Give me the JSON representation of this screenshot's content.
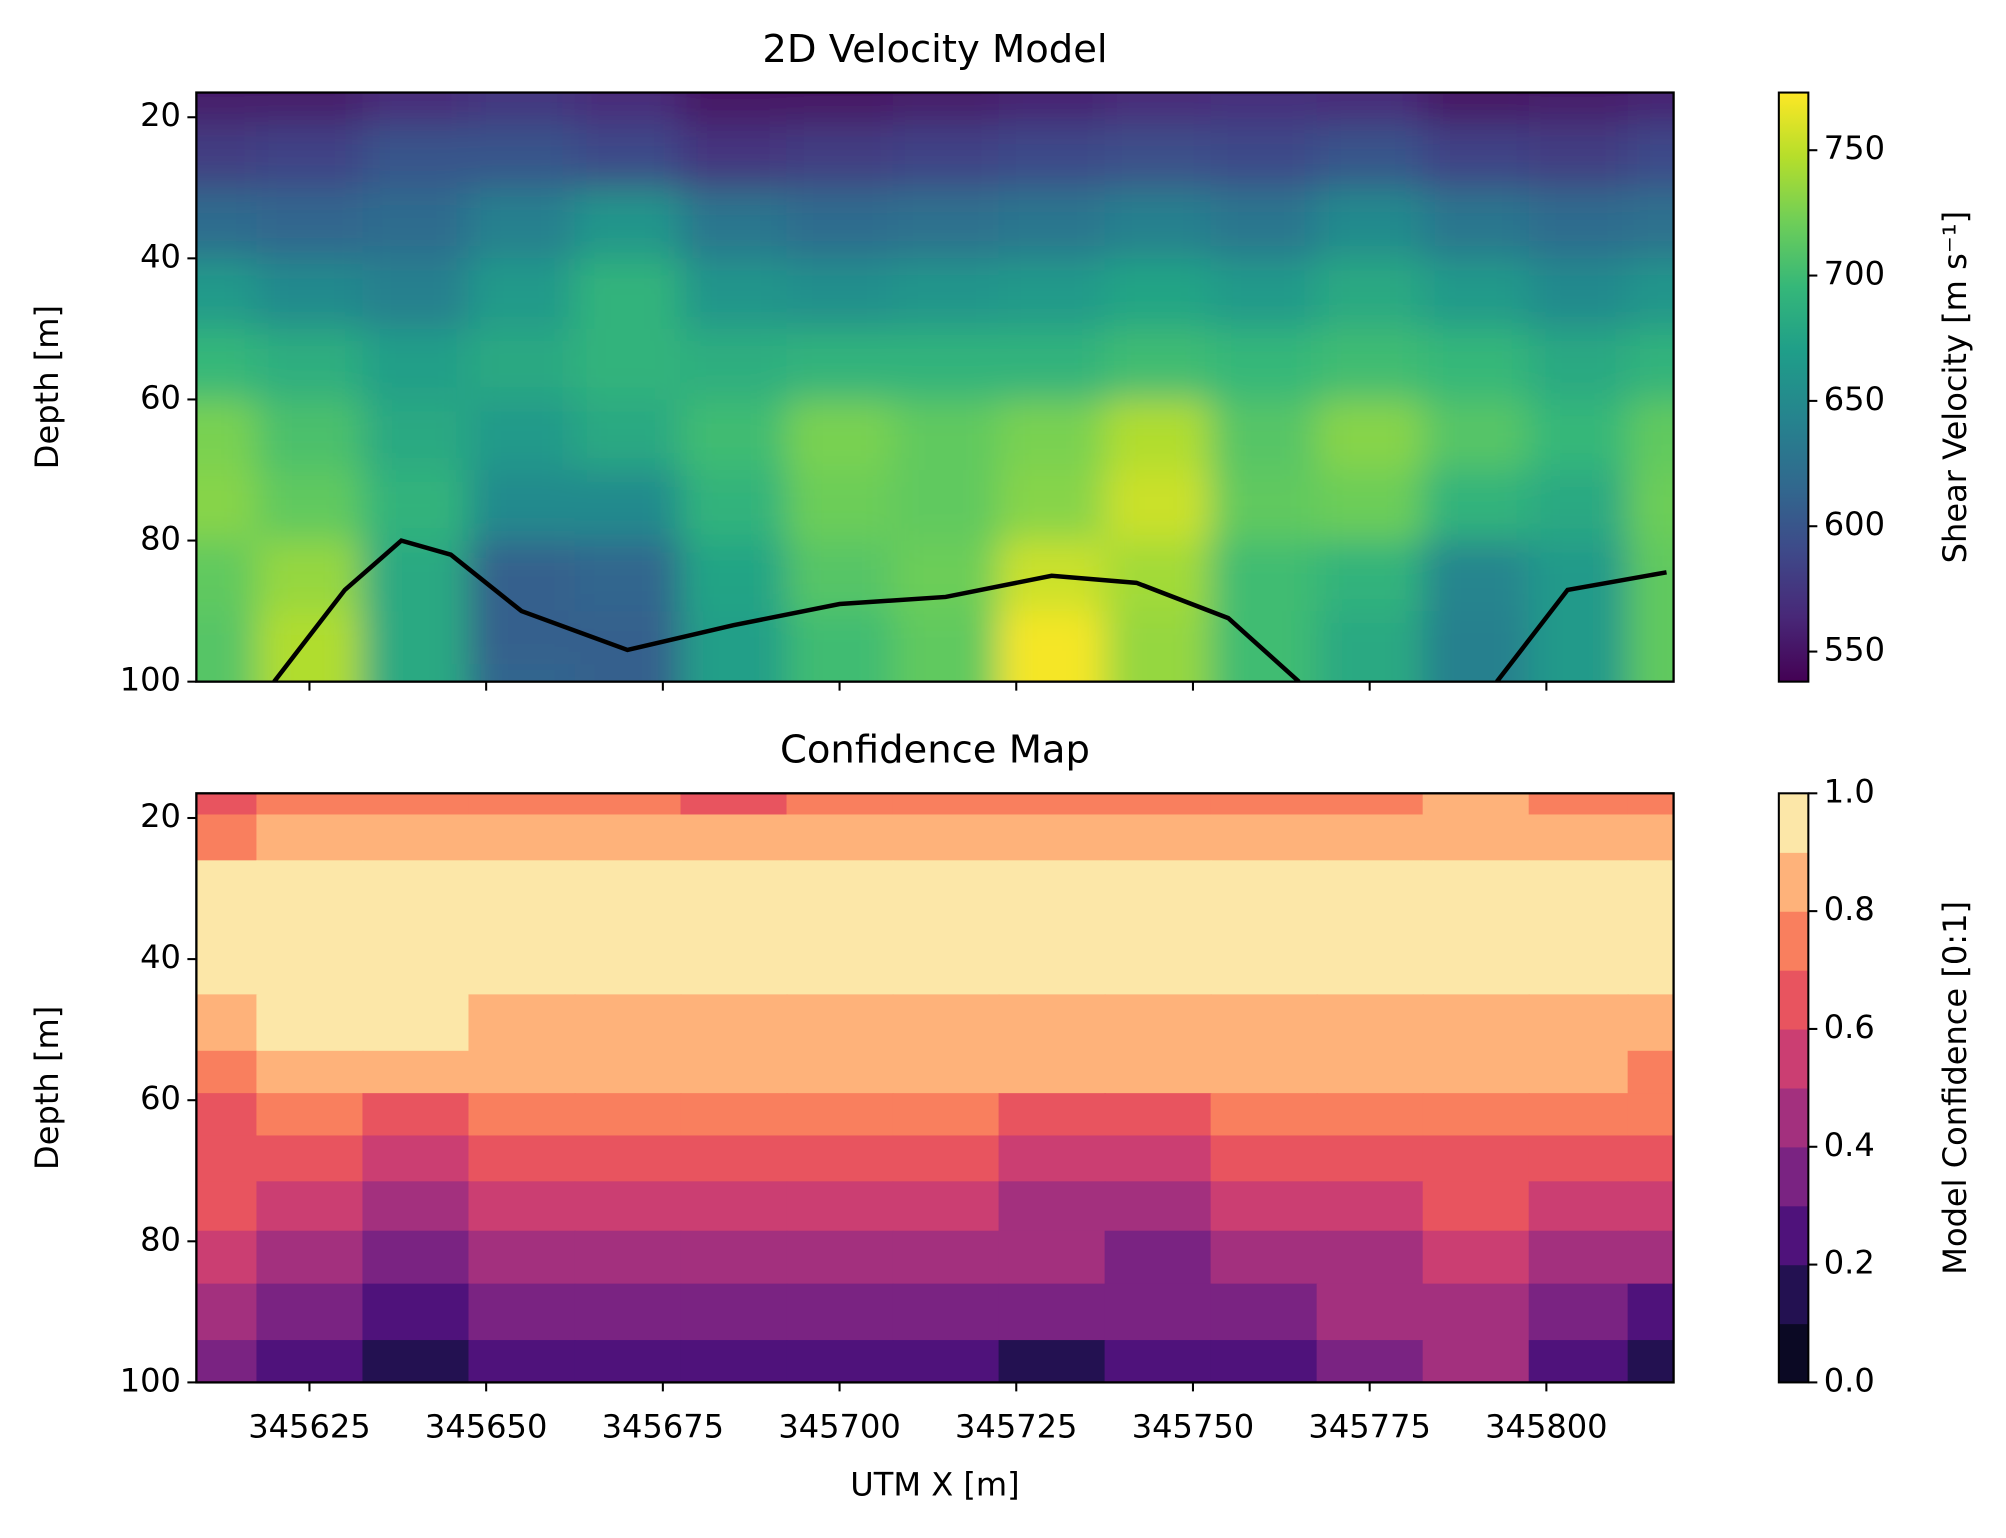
{
  "chart_data": [
    {
      "type": "heatmap",
      "title": "2D Velocity Model",
      "ylabel": "Depth [m]",
      "colorbar_label": "Shear Velocity [m s⁻¹]",
      "xlim": [
        345609,
        345818
      ],
      "xticks": [
        345625,
        345650,
        345675,
        345700,
        345725,
        345750,
        345775,
        345800
      ],
      "ylim": [
        100,
        16.5
      ],
      "yticks": [
        20,
        40,
        60,
        80,
        100
      ],
      "clim": [
        538,
        773
      ],
      "cticks": [
        550,
        600,
        650,
        700,
        750
      ],
      "colormap": "viridis",
      "x": [
        345610,
        345625,
        345640,
        345655,
        345670,
        345685,
        345700,
        345715,
        345730,
        345745,
        345760,
        345775,
        345790,
        345805,
        345818
      ],
      "y": [
        17,
        25,
        35,
        45,
        55,
        65,
        75,
        85,
        95,
        100
      ],
      "z": [
        [
          555,
          555,
          565,
          575,
          565,
          550,
          550,
          555,
          560,
          565,
          570,
          565,
          550,
          555,
          560
        ],
        [
          580,
          585,
          600,
          600,
          590,
          575,
          580,
          585,
          590,
          595,
          590,
          600,
          585,
          580,
          590
        ],
        [
          620,
          615,
          620,
          640,
          660,
          630,
          620,
          625,
          630,
          640,
          630,
          650,
          630,
          620,
          625
        ],
        [
          665,
          650,
          640,
          665,
          690,
          660,
          655,
          660,
          665,
          675,
          665,
          680,
          665,
          650,
          660
        ],
        [
          695,
          685,
          670,
          680,
          690,
          685,
          690,
          690,
          690,
          700,
          695,
          700,
          695,
          680,
          690
        ],
        [
          725,
          705,
          680,
          665,
          680,
          700,
          725,
          715,
          725,
          745,
          710,
          730,
          710,
          695,
          715
        ],
        [
          730,
          715,
          690,
          650,
          650,
          690,
          720,
          715,
          730,
          755,
          715,
          720,
          690,
          680,
          720
        ],
        [
          715,
          735,
          680,
          610,
          615,
          675,
          710,
          720,
          755,
          740,
          700,
          690,
          645,
          665,
          715
        ],
        [
          710,
          745,
          680,
          610,
          610,
          670,
          700,
          715,
          770,
          735,
          700,
          680,
          640,
          665,
          715
        ],
        [
          710,
          745,
          680,
          615,
          610,
          670,
          700,
          715,
          770,
          735,
          700,
          680,
          640,
          665,
          715
        ]
      ],
      "line": {
        "color": "#000000",
        "x": [
          345620,
          345630,
          345638,
          345645,
          345655,
          345670,
          345685,
          345700,
          345715,
          345730,
          345742,
          345755,
          345765,
          345780,
          345793,
          345803,
          345817
        ],
        "y": [
          100,
          87,
          80,
          82,
          90,
          95.5,
          92,
          89,
          88,
          85,
          86,
          91,
          100,
          null,
          100,
          87,
          84.5
        ]
      }
    },
    {
      "type": "contourf",
      "title": "Confidence Map",
      "ylabel": "Depth [m]",
      "xlabel": "UTM X [m]",
      "colorbar_label": "Model Confidence [0:1]",
      "xlim": [
        345609,
        345818
      ],
      "xticks": [
        345625,
        345650,
        345675,
        345700,
        345725,
        345750,
        345775,
        345800
      ],
      "ylim": [
        100,
        16.5
      ],
      "yticks": [
        20,
        40,
        60,
        80,
        100
      ],
      "levels": [
        0,
        0.1,
        0.2,
        0.3,
        0.4,
        0.5,
        0.6,
        0.7,
        0.8,
        0.9,
        1
      ],
      "level_colors": [
        "#0b0924",
        "#231151",
        "#4f127b",
        "#7a2382",
        "#a3307e",
        "#cb3e72",
        "#e8545f",
        "#f97f5e",
        "#feb27a",
        "#fce7a8"
      ],
      "cticks": [
        {
          "value": 0,
          "label": "0.0"
        },
        0.2,
        0.4,
        0.6,
        0.8,
        {
          "value": 1,
          "label": "1.0"
        }
      ],
      "x": [
        345610,
        345625,
        345640,
        345655,
        345670,
        345685,
        345700,
        345715,
        345730,
        345745,
        345760,
        345775,
        345790,
        345805,
        345818
      ],
      "y": [
        17,
        22,
        30,
        40,
        50,
        56,
        62,
        68,
        75,
        82,
        90,
        98
      ],
      "z": [
        [
          0.65,
          0.75,
          0.75,
          0.75,
          0.75,
          0.65,
          0.75,
          0.75,
          0.75,
          0.75,
          0.75,
          0.75,
          0.85,
          0.75,
          0.75
        ],
        [
          0.75,
          0.85,
          0.85,
          0.85,
          0.85,
          0.85,
          0.85,
          0.85,
          0.85,
          0.85,
          0.85,
          0.85,
          0.85,
          0.85,
          0.85
        ],
        [
          0.95,
          0.95,
          0.95,
          0.95,
          0.95,
          0.95,
          0.95,
          0.95,
          0.95,
          0.95,
          0.95,
          0.95,
          0.95,
          0.95,
          0.95
        ],
        [
          0.95,
          0.95,
          0.95,
          0.95,
          0.95,
          0.95,
          0.95,
          0.95,
          0.95,
          0.95,
          0.95,
          0.95,
          0.95,
          0.95,
          0.95
        ],
        [
          0.85,
          0.95,
          0.95,
          0.85,
          0.85,
          0.85,
          0.85,
          0.85,
          0.85,
          0.85,
          0.85,
          0.85,
          0.85,
          0.85,
          0.85
        ],
        [
          0.75,
          0.85,
          0.85,
          0.85,
          0.85,
          0.85,
          0.85,
          0.85,
          0.85,
          0.85,
          0.85,
          0.85,
          0.85,
          0.85,
          0.75
        ],
        [
          0.65,
          0.75,
          0.65,
          0.75,
          0.75,
          0.75,
          0.75,
          0.75,
          0.65,
          0.65,
          0.75,
          0.75,
          0.75,
          0.75,
          0.75
        ],
        [
          0.65,
          0.65,
          0.55,
          0.65,
          0.65,
          0.65,
          0.65,
          0.65,
          0.55,
          0.55,
          0.65,
          0.65,
          0.65,
          0.65,
          0.65
        ],
        [
          0.65,
          0.55,
          0.45,
          0.55,
          0.55,
          0.55,
          0.55,
          0.55,
          0.45,
          0.45,
          0.55,
          0.55,
          0.65,
          0.55,
          0.55
        ],
        [
          0.55,
          0.45,
          0.35,
          0.45,
          0.45,
          0.45,
          0.45,
          0.45,
          0.45,
          0.35,
          0.45,
          0.45,
          0.55,
          0.45,
          0.45
        ],
        [
          0.45,
          0.35,
          0.25,
          0.35,
          0.35,
          0.35,
          0.35,
          0.35,
          0.35,
          0.35,
          0.35,
          0.45,
          0.45,
          0.35,
          0.25
        ],
        [
          0.35,
          0.25,
          0.15,
          0.25,
          0.25,
          0.25,
          0.25,
          0.25,
          0.15,
          0.25,
          0.25,
          0.35,
          0.45,
          0.25,
          0.15
        ]
      ]
    }
  ]
}
